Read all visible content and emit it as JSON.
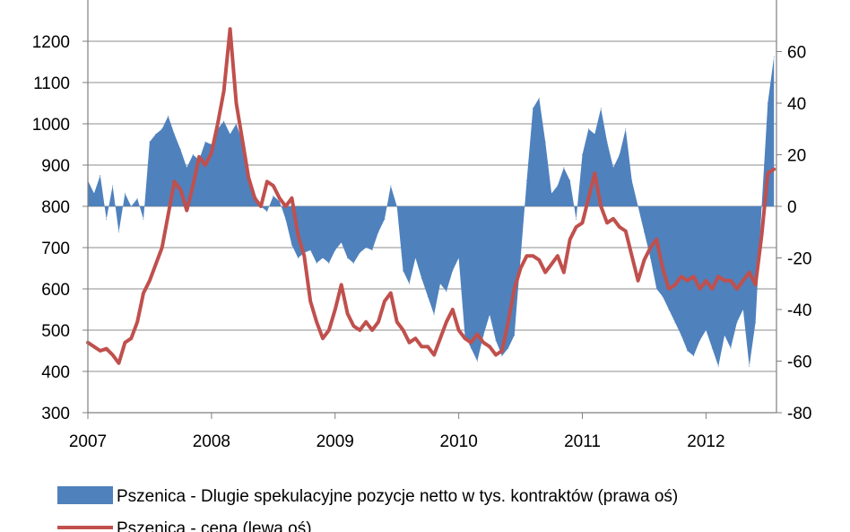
{
  "chart_data": {
    "type": "area+line",
    "title": "",
    "xlabel": "",
    "ylabel_left": "",
    "ylabel_right": "",
    "x_ticks": [
      "2007",
      "2008",
      "2009",
      "2010",
      "2011",
      "2012"
    ],
    "x_range": [
      2007.0,
      2012.57
    ],
    "y_left": {
      "ticks": [
        300,
        400,
        500,
        600,
        700,
        800,
        900,
        1000,
        1100,
        1200
      ],
      "range": [
        300,
        1300
      ]
    },
    "y_right": {
      "ticks": [
        -80,
        -60,
        -40,
        -20,
        0,
        20,
        40,
        60
      ],
      "range": [
        -80,
        80
      ]
    },
    "grid": "horizontal",
    "legend_position": "bottom",
    "colors": {
      "area": "#4f81bd",
      "line": "#c0504d"
    },
    "series": [
      {
        "name": "Pszenica - Dlugie spekulacyjne pozycje netto w tys. kontraktów (prawa oś)",
        "type": "area",
        "axis": "right",
        "x": [
          2007.0,
          2007.05,
          2007.1,
          2007.15,
          2007.2,
          2007.25,
          2007.3,
          2007.35,
          2007.4,
          2007.45,
          2007.5,
          2007.55,
          2007.6,
          2007.65,
          2007.7,
          2007.75,
          2007.8,
          2007.85,
          2007.9,
          2007.95,
          2008.0,
          2008.05,
          2008.1,
          2008.15,
          2008.2,
          2008.25,
          2008.3,
          2008.35,
          2008.4,
          2008.45,
          2008.5,
          2008.55,
          2008.6,
          2008.65,
          2008.7,
          2008.75,
          2008.8,
          2008.85,
          2008.9,
          2008.95,
          2009.0,
          2009.05,
          2009.1,
          2009.15,
          2009.2,
          2009.25,
          2009.3,
          2009.35,
          2009.4,
          2009.45,
          2009.5,
          2009.55,
          2009.6,
          2009.65,
          2009.7,
          2009.75,
          2009.8,
          2009.85,
          2009.9,
          2009.95,
          2010.0,
          2010.05,
          2010.1,
          2010.15,
          2010.2,
          2010.25,
          2010.3,
          2010.35,
          2010.4,
          2010.45,
          2010.5,
          2010.55,
          2010.6,
          2010.65,
          2010.7,
          2010.75,
          2010.8,
          2010.85,
          2010.9,
          2010.95,
          2011.0,
          2011.05,
          2011.1,
          2011.15,
          2011.2,
          2011.25,
          2011.3,
          2011.35,
          2011.4,
          2011.45,
          2011.5,
          2011.55,
          2011.6,
          2011.65,
          2011.7,
          2011.75,
          2011.8,
          2011.85,
          2011.9,
          2011.95,
          2012.0,
          2012.05,
          2012.1,
          2012.15,
          2012.2,
          2012.25,
          2012.3,
          2012.35,
          2012.4,
          2012.45,
          2012.5,
          2012.55
        ],
        "values": [
          10,
          5,
          12,
          -5,
          8,
          -10,
          5,
          0,
          3,
          -5,
          25,
          28,
          30,
          35,
          28,
          22,
          15,
          20,
          18,
          25,
          24,
          30,
          33,
          28,
          32,
          25,
          12,
          5,
          0,
          -2,
          4,
          2,
          -5,
          -15,
          -20,
          -18,
          -17,
          -22,
          -20,
          -22,
          -17,
          -14,
          -20,
          -22,
          -18,
          -16,
          -17,
          -10,
          -5,
          8,
          0,
          -25,
          -30,
          -20,
          -28,
          -35,
          -42,
          -30,
          -33,
          -25,
          -20,
          -50,
          -55,
          -60,
          -50,
          -42,
          -52,
          -58,
          -55,
          -50,
          -20,
          10,
          38,
          42,
          25,
          5,
          8,
          15,
          10,
          -5,
          20,
          30,
          28,
          38,
          25,
          15,
          20,
          30,
          10,
          0,
          -10,
          -20,
          -32,
          -35,
          -40,
          -45,
          -50,
          -56,
          -58,
          -52,
          -48,
          -55,
          -62,
          -50,
          -55,
          -45,
          -40,
          -62,
          -45,
          0,
          40,
          58
        ]
      },
      {
        "name": "Pszenica - cena (lewa oś)",
        "type": "line",
        "axis": "left",
        "x": [
          2007.0,
          2007.05,
          2007.1,
          2007.15,
          2007.2,
          2007.25,
          2007.3,
          2007.35,
          2007.4,
          2007.45,
          2007.5,
          2007.55,
          2007.6,
          2007.65,
          2007.7,
          2007.75,
          2007.8,
          2007.85,
          2007.9,
          2007.95,
          2008.0,
          2008.05,
          2008.1,
          2008.15,
          2008.2,
          2008.25,
          2008.3,
          2008.35,
          2008.4,
          2008.45,
          2008.5,
          2008.55,
          2008.6,
          2008.65,
          2008.7,
          2008.75,
          2008.8,
          2008.85,
          2008.9,
          2008.95,
          2009.0,
          2009.05,
          2009.1,
          2009.15,
          2009.2,
          2009.25,
          2009.3,
          2009.35,
          2009.4,
          2009.45,
          2009.5,
          2009.55,
          2009.6,
          2009.65,
          2009.7,
          2009.75,
          2009.8,
          2009.85,
          2009.9,
          2009.95,
          2010.0,
          2010.05,
          2010.1,
          2010.15,
          2010.2,
          2010.25,
          2010.3,
          2010.35,
          2010.4,
          2010.45,
          2010.5,
          2010.55,
          2010.6,
          2010.65,
          2010.7,
          2010.75,
          2010.8,
          2010.85,
          2010.9,
          2010.95,
          2011.0,
          2011.05,
          2011.1,
          2011.15,
          2011.2,
          2011.25,
          2011.3,
          2011.35,
          2011.4,
          2011.45,
          2011.5,
          2011.55,
          2011.6,
          2011.65,
          2011.7,
          2011.75,
          2011.8,
          2011.85,
          2011.9,
          2011.95,
          2012.0,
          2012.05,
          2012.1,
          2012.15,
          2012.2,
          2012.25,
          2012.3,
          2012.35,
          2012.4,
          2012.45,
          2012.5,
          2012.55
        ],
        "values": [
          470,
          460,
          450,
          455,
          440,
          420,
          470,
          480,
          520,
          590,
          620,
          660,
          700,
          780,
          860,
          840,
          790,
          850,
          920,
          900,
          930,
          1000,
          1080,
          1230,
          1050,
          960,
          870,
          820,
          800,
          860,
          850,
          820,
          800,
          820,
          730,
          680,
          570,
          520,
          480,
          500,
          550,
          610,
          540,
          510,
          500,
          520,
          500,
          520,
          570,
          590,
          520,
          500,
          470,
          480,
          460,
          460,
          440,
          480,
          520,
          550,
          500,
          480,
          470,
          490,
          470,
          460,
          440,
          450,
          520,
          600,
          650,
          680,
          680,
          670,
          640,
          660,
          680,
          640,
          720,
          750,
          760,
          820,
          880,
          800,
          760,
          770,
          750,
          740,
          680,
          620,
          670,
          700,
          720,
          650,
          600,
          610,
          630,
          620,
          630,
          600,
          620,
          600,
          630,
          620,
          620,
          600,
          620,
          640,
          610,
          730,
          880,
          890
        ]
      }
    ]
  }
}
